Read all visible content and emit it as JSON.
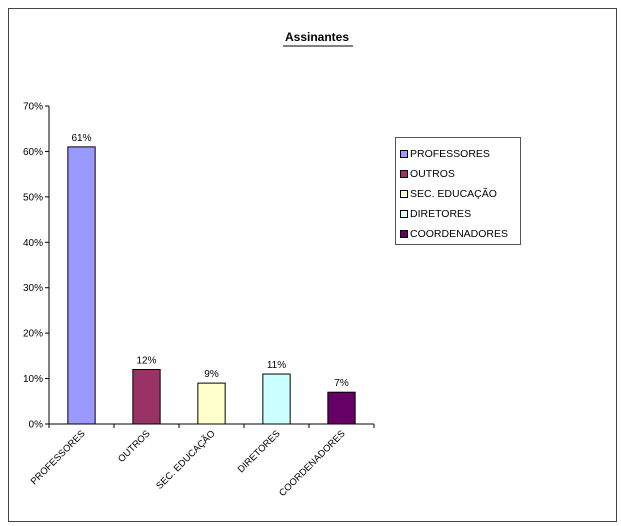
{
  "chart_data": {
    "type": "bar",
    "title": "Assinantes",
    "categories": [
      "PROFESSORES",
      "OUTROS",
      "SEC. EDUCAÇÃO",
      "DIRETORES",
      "COORDENADORES"
    ],
    "values": [
      61,
      12,
      9,
      11,
      7
    ],
    "data_labels": [
      "61%",
      "12%",
      "9%",
      "11%",
      "7%"
    ],
    "colors": [
      "#9999ff",
      "#993366",
      "#ffffcc",
      "#ccffff",
      "#660066"
    ],
    "ylim": [
      0,
      70
    ],
    "y_ticks": [
      0,
      10,
      20,
      30,
      40,
      50,
      60,
      70
    ],
    "y_tick_labels": [
      "0%",
      "10%",
      "20%",
      "30%",
      "40%",
      "50%",
      "60%",
      "70%"
    ],
    "xlabel": "",
    "ylabel": "",
    "grid": false,
    "legend_position": "right",
    "legend": [
      "PROFESSORES",
      "OUTROS",
      "SEC. EDUCAÇÃO",
      "DIRETORES",
      "COORDENADORES"
    ]
  }
}
